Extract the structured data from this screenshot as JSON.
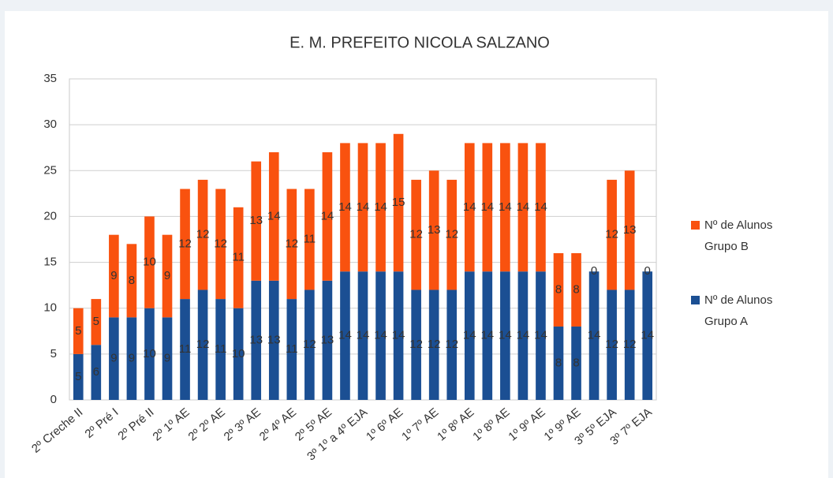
{
  "chart_data": {
    "type": "stacked_bar",
    "title": "E. M. PREFEITO NICOLA SALZANO",
    "categories": [
      "2º Creche II",
      null,
      "2º Pré I",
      null,
      "2º Pré II",
      null,
      "2º 1º AE",
      null,
      "2º 2º AE",
      null,
      "2º 3º AE",
      null,
      "2º 4º AE",
      null,
      "2º 5º AE",
      null,
      "3º 1º a 4º EJA",
      null,
      "1º 6º AE",
      null,
      "1º 7º AE",
      null,
      "1º 8º AE",
      null,
      "1º 8º AE",
      null,
      "1º 9º AE",
      null,
      "1º 9º AE",
      null,
      "3º 5º EJA",
      null,
      "3º 7º EJA"
    ],
    "series": [
      {
        "name": "Nº de Alunos Grupo A",
        "color": "#1b4f93",
        "values": [
          5,
          6,
          9,
          9,
          10,
          9,
          11,
          12,
          11,
          10,
          13,
          13,
          11,
          12,
          13,
          14,
          14,
          14,
          14,
          12,
          12,
          12,
          14,
          14,
          14,
          14,
          14,
          8,
          8,
          14,
          12,
          12,
          14
        ]
      },
      {
        "name": "Nº de Alunos Grupo B",
        "color": "#f9520f",
        "values": [
          5,
          5,
          9,
          8,
          10,
          9,
          12,
          12,
          12,
          11,
          13,
          14,
          12,
          11,
          14,
          14,
          14,
          14,
          15,
          12,
          13,
          12,
          14,
          14,
          14,
          14,
          14,
          8,
          8,
          0,
          12,
          13,
          0
        ]
      }
    ],
    "ylim": [
      0,
      35
    ],
    "yticks": [
      0,
      5,
      10,
      15,
      20,
      25,
      30,
      35
    ],
    "grid": true,
    "legend": "right"
  }
}
